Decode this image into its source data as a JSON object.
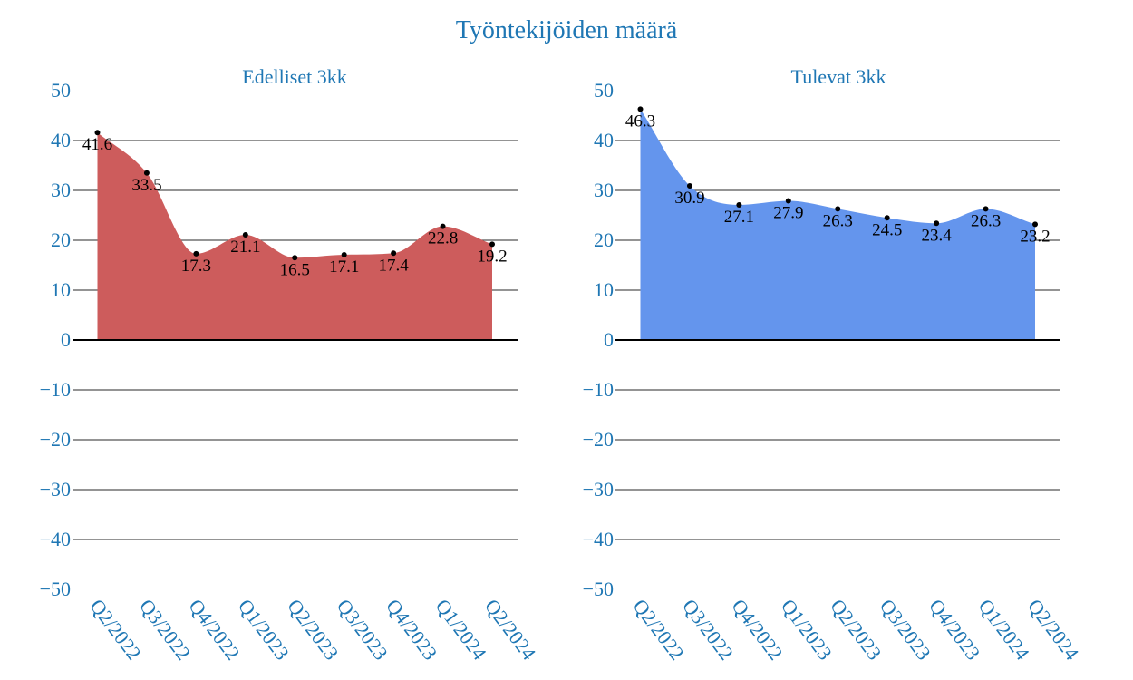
{
  "title": "Työntekijöiden määrä",
  "colors": {
    "text": "#1f77b4",
    "grid": "#555555",
    "zero_line": "#000000",
    "point": "#000000",
    "label": "#000000"
  },
  "chart_data": [
    {
      "type": "area",
      "title": "Edelliset 3kk",
      "categories": [
        "Q2/2022",
        "Q3/2022",
        "Q4/2022",
        "Q1/2023",
        "Q2/2023",
        "Q3/2023",
        "Q4/2023",
        "Q1/2024",
        "Q2/2024"
      ],
      "series": [
        {
          "values": [
            41.6,
            33.5,
            17.3,
            21.1,
            16.5,
            17.1,
            17.4,
            22.8,
            19.2
          ],
          "color": "#cd5c5c"
        }
      ],
      "ylim": [
        -50,
        50
      ],
      "yticks": [
        50,
        40,
        30,
        20,
        10,
        0,
        -10,
        -20,
        -30,
        -40,
        -50
      ],
      "ytick_labels": [
        "50",
        "40",
        "30",
        "20",
        "10",
        "0",
        "−10",
        "−20",
        "−30",
        "−40",
        "−50"
      ],
      "grid": true
    },
    {
      "type": "area",
      "title": "Tulevat 3kk",
      "categories": [
        "Q2/2022",
        "Q3/2022",
        "Q4/2022",
        "Q1/2023",
        "Q2/2023",
        "Q3/2023",
        "Q4/2023",
        "Q1/2024",
        "Q2/2024"
      ],
      "series": [
        {
          "values": [
            46.3,
            30.9,
            27.1,
            27.9,
            26.3,
            24.5,
            23.4,
            26.3,
            23.2
          ],
          "color": "#6495ed"
        }
      ],
      "ylim": [
        -50,
        50
      ],
      "yticks": [
        50,
        40,
        30,
        20,
        10,
        0,
        -10,
        -20,
        -30,
        -40,
        -50
      ],
      "ytick_labels": [
        "50",
        "40",
        "30",
        "20",
        "10",
        "0",
        "−10",
        "−20",
        "−30",
        "−40",
        "−50"
      ],
      "grid": true
    }
  ]
}
